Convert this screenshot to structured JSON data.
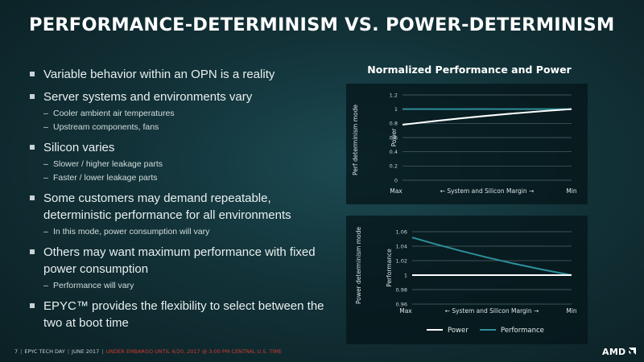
{
  "title": "PERFORMANCE-DETERMINISM VS. POWER-DETERMINISM",
  "bullets": [
    {
      "text": "Variable behavior within an OPN is a reality",
      "subs": []
    },
    {
      "text": "Server systems and environments vary",
      "subs": [
        "Cooler ambient air temperatures",
        "Upstream components, fans"
      ]
    },
    {
      "text": "Silicon varies",
      "subs": [
        "Slower / higher leakage parts",
        "Faster / lower leakage parts"
      ]
    },
    {
      "text": "Some customers may demand repeatable, deterministic performance for all environments",
      "subs": [
        "In this mode, power consumption will vary"
      ]
    },
    {
      "text": "Others may want maximum performance with fixed power consumption",
      "subs": [
        "Performance will vary"
      ]
    },
    {
      "text": "EPYC™ provides the flexibility to select between the two at boot time",
      "subs": []
    }
  ],
  "chart_title": "Normalized Performance and Power",
  "colors": {
    "power": "#ffffff",
    "performance": "#2e8f9b",
    "grid": "#51676a"
  },
  "chart_data": [
    {
      "type": "line",
      "panel_label": "Perf determinism mode",
      "xlabel": "← System and Silicon Margin →",
      "x_ticks": [
        "Max",
        "Min"
      ],
      "ylabel": "Power",
      "ylim": [
        0,
        1.2
      ],
      "y_ticks": [
        "0",
        "0.2",
        "0.4",
        "0.6",
        "0.8",
        "1",
        "1.2"
      ],
      "x": [
        0,
        1
      ],
      "series": [
        {
          "name": "Power",
          "values": [
            0.78,
            1.0
          ]
        },
        {
          "name": "Performance",
          "values": [
            1.0,
            1.0
          ]
        }
      ]
    },
    {
      "type": "line",
      "panel_label": "Power determinism mode",
      "xlabel": "← System and Silicon Margin →",
      "x_ticks": [
        "Max",
        "Min"
      ],
      "ylabel": "Performance",
      "ylim": [
        0.96,
        1.06
      ],
      "y_ticks": [
        "0.96",
        "0.98",
        "1",
        "1.02",
        "1.04",
        "1.06"
      ],
      "x": [
        0,
        1
      ],
      "series": [
        {
          "name": "Power",
          "values": [
            1.0,
            1.0
          ]
        },
        {
          "name": "Performance",
          "values": [
            1.052,
            1.0
          ]
        }
      ]
    }
  ],
  "legend": [
    {
      "label": "Power",
      "color": "#ffffff"
    },
    {
      "label": "Performance",
      "color": "#2e8f9b"
    }
  ],
  "footer": {
    "page": "7",
    "event": "EPYC TECH DAY",
    "date": "JUNE 2017",
    "embargo": "UNDER EMBARGO UNTIL 6/20, 2017 @ 3:00 PM CENTRAL U.S. TIME"
  },
  "logo_text": "AMD"
}
